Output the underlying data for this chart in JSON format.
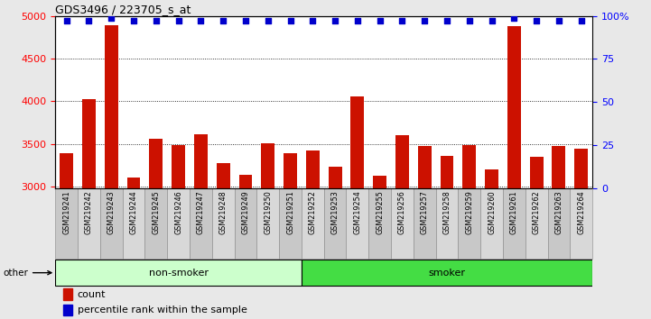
{
  "title": "GDS3496 / 223705_s_at",
  "samples": [
    "GSM219241",
    "GSM219242",
    "GSM219243",
    "GSM219244",
    "GSM219245",
    "GSM219246",
    "GSM219247",
    "GSM219248",
    "GSM219249",
    "GSM219250",
    "GSM219251",
    "GSM219252",
    "GSM219253",
    "GSM219254",
    "GSM219255",
    "GSM219256",
    "GSM219257",
    "GSM219258",
    "GSM219259",
    "GSM219260",
    "GSM219261",
    "GSM219262",
    "GSM219263",
    "GSM219264"
  ],
  "counts": [
    3390,
    4020,
    4890,
    3110,
    3560,
    3490,
    3610,
    3270,
    3140,
    3510,
    3390,
    3420,
    3230,
    4060,
    3130,
    3600,
    3470,
    3360,
    3490,
    3200,
    4880,
    3350,
    3480,
    3440
  ],
  "percentiles": [
    97,
    97,
    99,
    97,
    97,
    97,
    97,
    97,
    97,
    97,
    97,
    97,
    97,
    97,
    97,
    97,
    97,
    97,
    97,
    97,
    99,
    97,
    97,
    97
  ],
  "nonsmoker_count": 11,
  "smoker_count": 13,
  "ylim_left": [
    2980,
    5000
  ],
  "ylim_right": [
    0,
    100
  ],
  "y_ticks_left": [
    3000,
    3500,
    4000,
    4500,
    5000
  ],
  "y_ticks_right": [
    0,
    25,
    50,
    75,
    100
  ],
  "bar_color": "#cc1100",
  "dot_color": "#0000cc",
  "nonsmoker_color": "#ccffcc",
  "smoker_color": "#44dd44",
  "bg_color": "#e8e8e8",
  "plot_bg": "#ffffff",
  "tick_bg_even": "#c8c8c8",
  "tick_bg_odd": "#d8d8d8"
}
